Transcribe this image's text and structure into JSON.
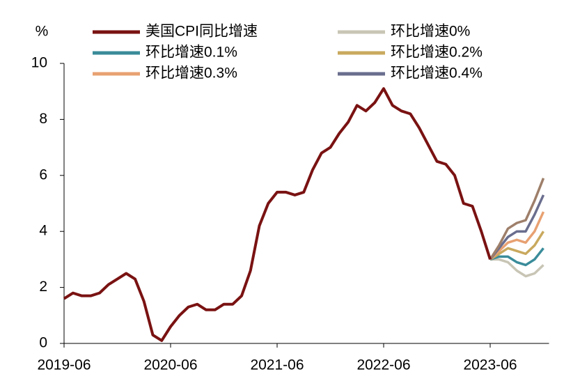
{
  "chart_data": {
    "type": "line",
    "y_label": "%",
    "categories": [
      "2019-06",
      null,
      null,
      null,
      null,
      null,
      null,
      null,
      null,
      null,
      null,
      null,
      "2020-06",
      null,
      null,
      null,
      null,
      null,
      null,
      null,
      null,
      null,
      null,
      null,
      "2021-06",
      null,
      null,
      null,
      null,
      null,
      null,
      null,
      null,
      null,
      null,
      null,
      "2022-06",
      null,
      null,
      null,
      null,
      null,
      null,
      null,
      null,
      null,
      null,
      null,
      "2023-06",
      null,
      null,
      null,
      null,
      null,
      null
    ],
    "series": [
      {
        "name": "美国CPI同比增速",
        "color": "#7a1212",
        "values": [
          1.6,
          1.8,
          1.7,
          1.7,
          1.8,
          2.1,
          2.3,
          2.5,
          2.3,
          1.5,
          0.3,
          0.1,
          0.6,
          1.0,
          1.3,
          1.4,
          1.2,
          1.2,
          1.4,
          1.4,
          1.7,
          2.6,
          4.2,
          5.0,
          5.4,
          5.4,
          5.3,
          5.4,
          6.2,
          6.8,
          7.0,
          7.5,
          7.9,
          8.5,
          8.3,
          8.6,
          9.1,
          8.5,
          8.3,
          8.2,
          7.7,
          7.1,
          6.5,
          6.4,
          6.0,
          5.0,
          4.9,
          4.0,
          3.0,
          null,
          null,
          null,
          null,
          null,
          null
        ]
      },
      {
        "name": "环比增速0%",
        "color": "#c8c5b5",
        "values": [
          null,
          null,
          null,
          null,
          null,
          null,
          null,
          null,
          null,
          null,
          null,
          null,
          null,
          null,
          null,
          null,
          null,
          null,
          null,
          null,
          null,
          null,
          null,
          null,
          null,
          null,
          null,
          null,
          null,
          null,
          null,
          null,
          null,
          null,
          null,
          null,
          null,
          null,
          null,
          null,
          null,
          null,
          null,
          null,
          null,
          null,
          null,
          null,
          3.0,
          3.0,
          2.9,
          2.6,
          2.4,
          2.5,
          2.8
        ]
      },
      {
        "name": "环比增速0.1%",
        "color": "#3a8c9a",
        "values": [
          null,
          null,
          null,
          null,
          null,
          null,
          null,
          null,
          null,
          null,
          null,
          null,
          null,
          null,
          null,
          null,
          null,
          null,
          null,
          null,
          null,
          null,
          null,
          null,
          null,
          null,
          null,
          null,
          null,
          null,
          null,
          null,
          null,
          null,
          null,
          null,
          null,
          null,
          null,
          null,
          null,
          null,
          null,
          null,
          null,
          null,
          null,
          null,
          3.0,
          3.1,
          3.1,
          2.9,
          2.8,
          3.0,
          3.4
        ]
      },
      {
        "name": "环比增速0.2%",
        "color": "#c9a95e",
        "values": [
          null,
          null,
          null,
          null,
          null,
          null,
          null,
          null,
          null,
          null,
          null,
          null,
          null,
          null,
          null,
          null,
          null,
          null,
          null,
          null,
          null,
          null,
          null,
          null,
          null,
          null,
          null,
          null,
          null,
          null,
          null,
          null,
          null,
          null,
          null,
          null,
          null,
          null,
          null,
          null,
          null,
          null,
          null,
          null,
          null,
          null,
          null,
          null,
          3.0,
          3.2,
          3.4,
          3.3,
          3.2,
          3.5,
          4.0
        ]
      },
      {
        "name": "环比增速0.3%",
        "color": "#e8a172",
        "values": [
          null,
          null,
          null,
          null,
          null,
          null,
          null,
          null,
          null,
          null,
          null,
          null,
          null,
          null,
          null,
          null,
          null,
          null,
          null,
          null,
          null,
          null,
          null,
          null,
          null,
          null,
          null,
          null,
          null,
          null,
          null,
          null,
          null,
          null,
          null,
          null,
          null,
          null,
          null,
          null,
          null,
          null,
          null,
          null,
          null,
          null,
          null,
          null,
          3.0,
          3.3,
          3.6,
          3.7,
          3.6,
          4.0,
          4.7
        ]
      },
      {
        "name": "环比增速0.4%",
        "color": "#6a6e8e",
        "values": [
          null,
          null,
          null,
          null,
          null,
          null,
          null,
          null,
          null,
          null,
          null,
          null,
          null,
          null,
          null,
          null,
          null,
          null,
          null,
          null,
          null,
          null,
          null,
          null,
          null,
          null,
          null,
          null,
          null,
          null,
          null,
          null,
          null,
          null,
          null,
          null,
          null,
          null,
          null,
          null,
          null,
          null,
          null,
          null,
          null,
          null,
          null,
          null,
          3.0,
          3.4,
          3.8,
          4.0,
          4.0,
          4.6,
          5.3
        ]
      },
      {
        "color": "#9e7f6a",
        "values": [
          null,
          null,
          null,
          null,
          null,
          null,
          null,
          null,
          null,
          null,
          null,
          null,
          null,
          null,
          null,
          null,
          null,
          null,
          null,
          null,
          null,
          null,
          null,
          null,
          null,
          null,
          null,
          null,
          null,
          null,
          null,
          null,
          null,
          null,
          null,
          null,
          null,
          null,
          null,
          null,
          null,
          null,
          null,
          null,
          null,
          null,
          null,
          null,
          3.0,
          3.5,
          4.1,
          4.3,
          4.4,
          5.1,
          5.9
        ]
      }
    ],
    "ylim": [
      0,
      10
    ],
    "yticks": [
      0,
      2,
      4,
      6,
      8,
      10
    ]
  }
}
